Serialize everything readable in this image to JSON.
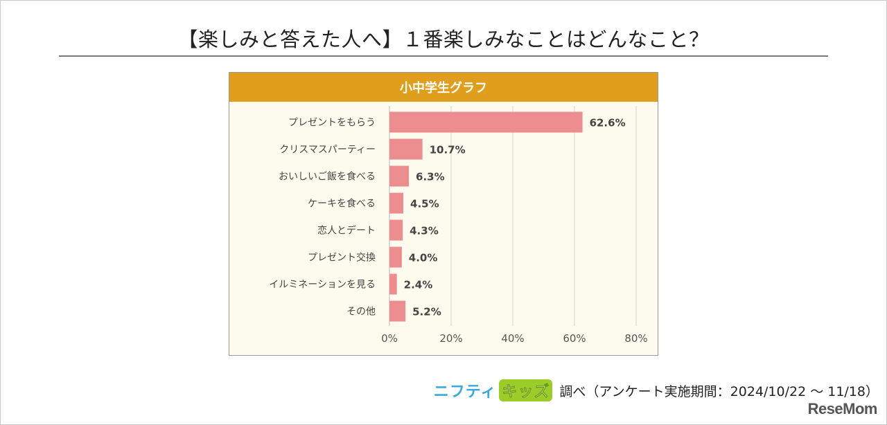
{
  "title": "【楽しみと答えた人へ】１番楽しみなことはどんなこと？",
  "chart_data": {
    "type": "bar",
    "orientation": "horizontal",
    "subtitle": "小中学生グラフ",
    "categories": [
      "プレゼントをもらう",
      "クリスマスパーティー",
      "おいしいご飯を食べる",
      "ケーキを食べる",
      "恋人とデート",
      "プレゼント交換",
      "イルミネーションを見る",
      "その他"
    ],
    "values": [
      62.6,
      10.7,
      6.3,
      4.5,
      4.3,
      4.0,
      2.4,
      5.2
    ],
    "value_labels": [
      "62.6%",
      "10.7%",
      "6.3%",
      "4.5%",
      "4.3%",
      "4.0%",
      "2.4%",
      "5.2%"
    ],
    "xlim": [
      0,
      80
    ],
    "xticks": [
      0,
      20,
      40,
      60,
      80
    ],
    "xtick_labels": [
      "0%",
      "20%",
      "40%",
      "60%",
      "80%"
    ],
    "grid": true,
    "bar_color": "#ec8e8f",
    "header_color": "#e09e1d",
    "background_color": "#fdfbed"
  },
  "footer": {
    "brand_part1": "ニフティ",
    "brand_part2": "キッズ",
    "source": "調べ（アンケート実施期間：2024/10/22 ～ 11/18）"
  },
  "logo_text": "ReseMom"
}
